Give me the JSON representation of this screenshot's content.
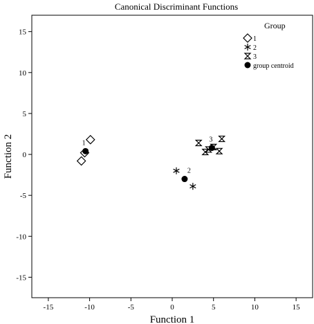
{
  "chart_data": {
    "type": "scatter",
    "title": "Canonical Discriminant Functions",
    "xlabel": "Function 1",
    "ylabel": "Function 2",
    "xlim": [
      -17,
      17
    ],
    "ylim": [
      -17.5,
      17
    ],
    "xticks": [
      -15,
      -10,
      -5,
      0,
      5,
      10,
      15
    ],
    "yticks": [
      -15,
      -10,
      -5,
      0,
      5,
      10,
      15
    ],
    "grid": false,
    "legend": {
      "title": "Group",
      "placement": "top-right",
      "entries": [
        {
          "label": "1",
          "marker": "diamond"
        },
        {
          "label": "2",
          "marker": "asterisk"
        },
        {
          "label": "3",
          "marker": "hourglass"
        },
        {
          "label": "group centroid",
          "marker": "filled-circle"
        }
      ]
    },
    "series": [
      {
        "name": "1",
        "marker": "diamond",
        "x": [
          -11.0,
          -10.6,
          -9.9
        ],
        "y": [
          -0.8,
          0.2,
          1.8
        ]
      },
      {
        "name": "2",
        "marker": "asterisk",
        "x": [
          0.5,
          2.5
        ],
        "y": [
          -2.0,
          -3.9
        ]
      },
      {
        "name": "3",
        "marker": "hourglass",
        "x": [
          3.2,
          4.0,
          4.4,
          5.0,
          5.7,
          6.0
        ],
        "y": [
          1.4,
          0.3,
          0.6,
          0.9,
          0.4,
          1.9
        ]
      }
    ],
    "centroids": [
      {
        "label": "1",
        "x": -10.5,
        "y": 0.4
      },
      {
        "label": "2",
        "x": 1.5,
        "y": -3.0
      },
      {
        "label": "3",
        "x": 4.8,
        "y": 0.8
      }
    ]
  }
}
